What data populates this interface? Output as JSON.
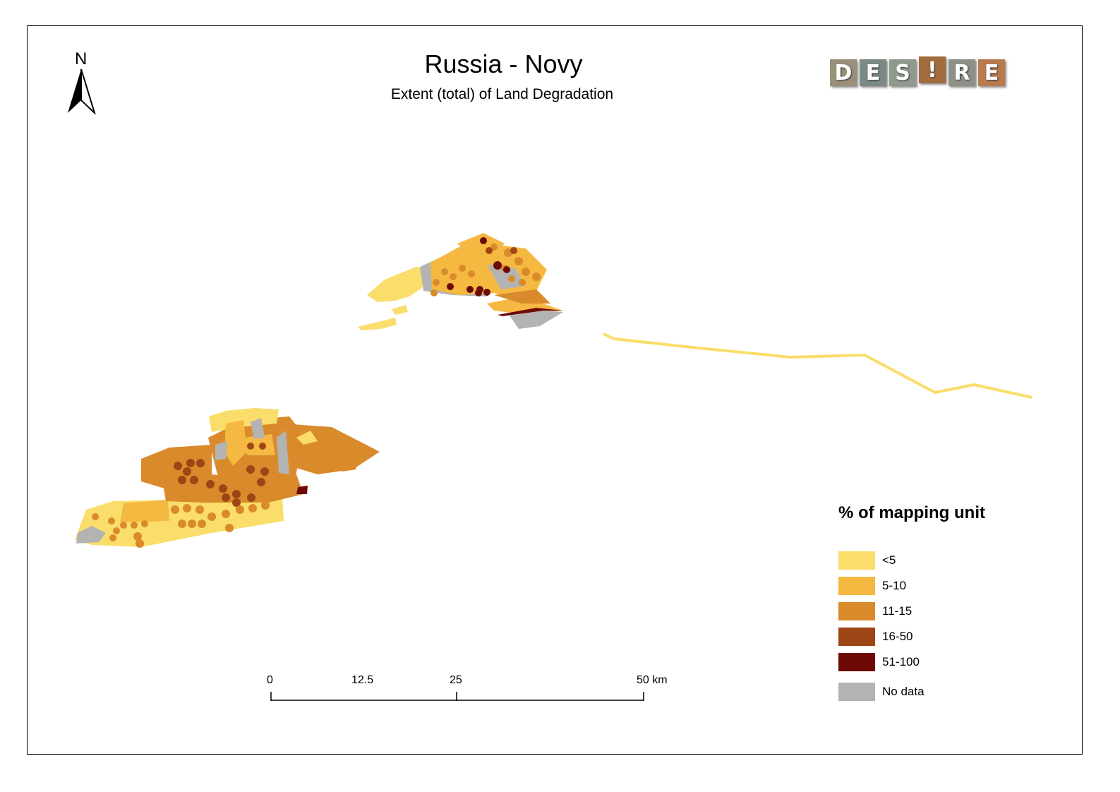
{
  "title": "Russia - Novy",
  "subtitle": "Extent (total) of Land Degradation",
  "north": "N",
  "logo": {
    "text": "DES!RE",
    "letters": [
      "D",
      "E",
      "S",
      "!",
      "R",
      "E"
    ]
  },
  "legend": {
    "title": "% of mapping unit",
    "items": [
      {
        "label": "<5",
        "color": "#FADD6A"
      },
      {
        "label": "5-10",
        "color": "#F5B942"
      },
      {
        "label": "11-15",
        "color": "#D98A2B"
      },
      {
        "label": "16-50",
        "color": "#9E4516"
      },
      {
        "label": "51-100",
        "color": "#6E0A05"
      },
      {
        "label": "No data",
        "color": "#B3B3B3"
      }
    ]
  },
  "scale": {
    "labels": [
      "0",
      "12.5",
      "25",
      "50 km"
    ]
  }
}
